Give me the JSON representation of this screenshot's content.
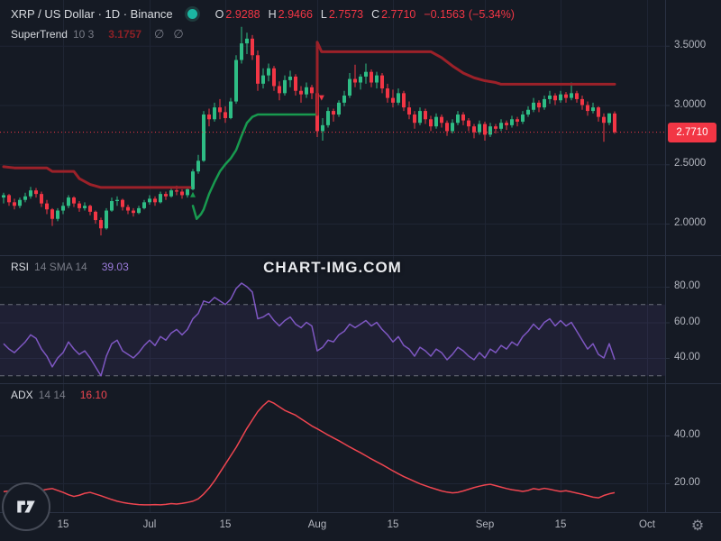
{
  "header": {
    "title": "XRP / US Dollar · 1D · Binance",
    "ohlc": {
      "open_label": "O",
      "open": "2.9288",
      "high_label": "H",
      "high": "2.9466",
      "low_label": "L",
      "low": "2.7573",
      "close_label": "C",
      "close": "2.7710",
      "change": "−0.1563",
      "change_pct": "(−5.34%)"
    }
  },
  "indicators": {
    "supertrend": {
      "name": "SuperTrend",
      "params": "10 3",
      "value": "3.1757",
      "empty1": "∅",
      "empty2": "∅"
    },
    "rsi": {
      "name": "RSI",
      "params": "14 SMA 14",
      "value": "39.03"
    },
    "adx": {
      "name": "ADX",
      "params": "14 14",
      "value": "16.10"
    }
  },
  "watermark": "CHART-IMG.COM",
  "icons": {
    "settings": "⚙"
  },
  "axes": {
    "price_ticks": [
      {
        "label": "3.5000",
        "value": 3.5
      },
      {
        "label": "3.0000",
        "value": 3.0
      },
      {
        "label": "2.5000",
        "value": 2.5
      },
      {
        "label": "2.0000",
        "value": 2.0
      }
    ],
    "price_label": "2.7710",
    "rsi_ticks": [
      {
        "label": "80.00",
        "value": 80
      },
      {
        "label": "60.00",
        "value": 60
      },
      {
        "label": "40.00",
        "value": 40
      }
    ],
    "adx_ticks": [
      {
        "label": "40.00",
        "value": 40
      },
      {
        "label": "20.00",
        "value": 20
      }
    ],
    "time_ticks": [
      {
        "label": "15",
        "index": 11
      },
      {
        "label": "Jul",
        "index": 27
      },
      {
        "label": "15",
        "index": 41
      },
      {
        "label": "Aug",
        "index": 58
      },
      {
        "label": "15",
        "index": 72
      },
      {
        "label": "Sep",
        "index": 89
      },
      {
        "label": "15",
        "index": 103
      },
      {
        "label": "Oct",
        "index": 119
      }
    ]
  },
  "colors": {
    "background": "#151a24",
    "grid": "#1f2534",
    "separator": "#2a3142",
    "text_primary": "#d8dbe0",
    "text_secondary": "#787b86",
    "axis_text": "#b2b5be",
    "up": "#2ebd85",
    "down": "#f23645",
    "supertrend_up": "#189a4f",
    "supertrend_down": "#9c2129",
    "rsi_line": "#7e57c2",
    "rsi_band": "rgba(126,87,194,0.10)",
    "rsi_level": "#6a6e79",
    "adx_line": "#ef4550",
    "price_line": "#f23645",
    "price_label_bg": "#f23645",
    "supertrend_value": "#8c2026",
    "rsi_value": "#9b7bdb",
    "adx_value": "#ef4550",
    "status_dot": "#1bb7a2",
    "watermark": "#e8eaee"
  },
  "chart_data": [
    {
      "type": "candlestick",
      "name": "XRP/USD daily candles with SuperTrend 10,3",
      "y_ticks": [
        3.5,
        3.0,
        2.5,
        2.0
      ],
      "ylim": [
        1.85,
        3.7
      ],
      "last_price": 2.771,
      "ohlc": [
        [
          2.22,
          2.26,
          2.17,
          2.24
        ],
        [
          2.24,
          2.25,
          2.15,
          2.18
        ],
        [
          2.18,
          2.21,
          2.12,
          2.15
        ],
        [
          2.15,
          2.22,
          2.13,
          2.2
        ],
        [
          2.2,
          2.26,
          2.18,
          2.23
        ],
        [
          2.23,
          2.31,
          2.21,
          2.28
        ],
        [
          2.28,
          2.3,
          2.22,
          2.25
        ],
        [
          2.25,
          2.27,
          2.14,
          2.17
        ],
        [
          2.17,
          2.2,
          2.08,
          2.12
        ],
        [
          2.12,
          2.13,
          1.98,
          2.04
        ],
        [
          2.04,
          2.13,
          2.02,
          2.11
        ],
        [
          2.11,
          2.18,
          2.08,
          2.15
        ],
        [
          2.15,
          2.24,
          2.13,
          2.22
        ],
        [
          2.22,
          2.23,
          2.14,
          2.17
        ],
        [
          2.17,
          2.19,
          2.1,
          2.13
        ],
        [
          2.13,
          2.18,
          2.11,
          2.15
        ],
        [
          2.15,
          2.16,
          2.07,
          2.1
        ],
        [
          2.1,
          2.11,
          2.0,
          2.03
        ],
        [
          2.03,
          2.05,
          1.9,
          1.96
        ],
        [
          1.96,
          2.13,
          1.95,
          2.11
        ],
        [
          2.11,
          2.22,
          2.1,
          2.19
        ],
        [
          2.19,
          2.23,
          2.15,
          2.2
        ],
        [
          2.2,
          2.21,
          2.11,
          2.14
        ],
        [
          2.14,
          2.16,
          2.08,
          2.11
        ],
        [
          2.11,
          2.13,
          2.06,
          2.09
        ],
        [
          2.09,
          2.15,
          2.08,
          2.13
        ],
        [
          2.13,
          2.2,
          2.12,
          2.18
        ],
        [
          2.18,
          2.24,
          2.16,
          2.21
        ],
        [
          2.21,
          2.23,
          2.15,
          2.18
        ],
        [
          2.18,
          2.27,
          2.17,
          2.25
        ],
        [
          2.25,
          2.27,
          2.2,
          2.23
        ],
        [
          2.23,
          2.3,
          2.22,
          2.28
        ],
        [
          2.28,
          2.32,
          2.24,
          2.27
        ],
        [
          2.27,
          2.29,
          2.21,
          2.24
        ],
        [
          2.24,
          2.31,
          2.22,
          2.29
        ],
        [
          2.29,
          2.46,
          2.28,
          2.44
        ],
        [
          2.44,
          2.58,
          2.42,
          2.53
        ],
        [
          2.53,
          2.95,
          2.52,
          2.92
        ],
        [
          2.92,
          2.97,
          2.82,
          2.88
        ],
        [
          2.88,
          3.02,
          2.86,
          2.98
        ],
        [
          2.98,
          3.05,
          2.88,
          2.94
        ],
        [
          2.94,
          2.99,
          2.85,
          2.89
        ],
        [
          2.89,
          3.06,
          2.88,
          3.03
        ],
        [
          3.03,
          3.42,
          3.01,
          3.38
        ],
        [
          3.38,
          3.66,
          3.35,
          3.52
        ],
        [
          3.52,
          3.61,
          3.43,
          3.56
        ],
        [
          3.56,
          3.59,
          3.38,
          3.42
        ],
        [
          3.42,
          3.46,
          3.12,
          3.18
        ],
        [
          3.18,
          3.31,
          3.14,
          3.25
        ],
        [
          3.25,
          3.35,
          3.2,
          3.31
        ],
        [
          3.31,
          3.33,
          3.12,
          3.16
        ],
        [
          3.16,
          3.2,
          3.04,
          3.1
        ],
        [
          3.1,
          3.25,
          3.08,
          3.21
        ],
        [
          3.21,
          3.29,
          3.15,
          3.24
        ],
        [
          3.24,
          3.26,
          3.08,
          3.12
        ],
        [
          3.12,
          3.16,
          3.02,
          3.09
        ],
        [
          3.09,
          3.19,
          3.06,
          3.15
        ],
        [
          3.15,
          3.17,
          3.05,
          3.1
        ],
        [
          3.1,
          3.11,
          2.73,
          2.78
        ],
        [
          2.78,
          2.89,
          2.7,
          2.83
        ],
        [
          2.83,
          2.98,
          2.81,
          2.95
        ],
        [
          2.95,
          2.97,
          2.86,
          2.92
        ],
        [
          2.92,
          3.04,
          2.9,
          3.02
        ],
        [
          3.02,
          3.12,
          2.99,
          3.08
        ],
        [
          3.08,
          3.27,
          3.06,
          3.22
        ],
        [
          3.22,
          3.34,
          3.15,
          3.19
        ],
        [
          3.19,
          3.26,
          3.13,
          3.24
        ],
        [
          3.24,
          3.35,
          3.18,
          3.28
        ],
        [
          3.28,
          3.3,
          3.15,
          3.19
        ],
        [
          3.19,
          3.28,
          3.14,
          3.25
        ],
        [
          3.25,
          3.27,
          3.1,
          3.14
        ],
        [
          3.14,
          3.18,
          3.02,
          3.06
        ],
        [
          3.06,
          3.13,
          2.98,
          3.02
        ],
        [
          3.02,
          3.14,
          3.0,
          3.1
        ],
        [
          3.1,
          3.12,
          2.95,
          2.98
        ],
        [
          2.98,
          3.03,
          2.88,
          2.92
        ],
        [
          2.92,
          2.95,
          2.8,
          2.85
        ],
        [
          2.85,
          2.98,
          2.83,
          2.95
        ],
        [
          2.95,
          2.97,
          2.84,
          2.88
        ],
        [
          2.88,
          2.91,
          2.78,
          2.82
        ],
        [
          2.82,
          2.93,
          2.8,
          2.9
        ],
        [
          2.9,
          2.92,
          2.81,
          2.85
        ],
        [
          2.85,
          2.87,
          2.74,
          2.78
        ],
        [
          2.78,
          2.88,
          2.76,
          2.85
        ],
        [
          2.85,
          2.95,
          2.83,
          2.92
        ],
        [
          2.92,
          2.94,
          2.83,
          2.87
        ],
        [
          2.87,
          2.89,
          2.78,
          2.82
        ],
        [
          2.82,
          2.84,
          2.72,
          2.77
        ],
        [
          2.77,
          2.87,
          2.75,
          2.84
        ],
        [
          2.84,
          2.86,
          2.7,
          2.75
        ],
        [
          2.75,
          2.85,
          2.73,
          2.82
        ],
        [
          2.82,
          2.84,
          2.76,
          2.8
        ],
        [
          2.8,
          2.88,
          2.78,
          2.85
        ],
        [
          2.85,
          2.87,
          2.79,
          2.83
        ],
        [
          2.83,
          2.91,
          2.81,
          2.88
        ],
        [
          2.88,
          2.9,
          2.82,
          2.86
        ],
        [
          2.86,
          2.95,
          2.84,
          2.92
        ],
        [
          2.92,
          2.99,
          2.9,
          2.96
        ],
        [
          2.96,
          3.06,
          2.94,
          3.02
        ],
        [
          3.02,
          3.04,
          2.94,
          2.98
        ],
        [
          2.98,
          3.08,
          2.96,
          3.05
        ],
        [
          3.05,
          3.12,
          3.01,
          3.08
        ],
        [
          3.08,
          3.1,
          3.0,
          3.04
        ],
        [
          3.04,
          3.12,
          3.02,
          3.09
        ],
        [
          3.09,
          3.11,
          3.02,
          3.06
        ],
        [
          3.06,
          3.19,
          3.04,
          3.1
        ],
        [
          3.1,
          3.12,
          3.02,
          3.05
        ],
        [
          3.05,
          3.08,
          2.96,
          3.0
        ],
        [
          3.0,
          3.03,
          2.91,
          2.95
        ],
        [
          2.95,
          3.02,
          2.93,
          2.98
        ],
        [
          2.98,
          2.99,
          2.86,
          2.9
        ],
        [
          2.9,
          2.93,
          2.69,
          2.85
        ],
        [
          2.85,
          2.93,
          2.83,
          2.93
        ],
        [
          2.9288,
          2.9466,
          2.7573,
          2.771
        ]
      ],
      "supertrend": {
        "down1": [
          [
            0,
            2.48
          ],
          [
            2,
            2.47
          ],
          [
            8,
            2.47
          ],
          [
            9,
            2.44
          ],
          [
            13,
            2.44
          ],
          [
            14,
            2.38
          ],
          [
            16,
            2.33
          ],
          [
            18,
            2.305
          ],
          [
            34.5,
            2.305
          ]
        ],
        "up": [
          [
            35,
            2.15
          ],
          [
            35.7,
            2.04
          ],
          [
            36.5,
            2.08
          ],
          [
            37,
            2.12
          ],
          [
            38,
            2.25
          ],
          [
            39,
            2.35
          ],
          [
            40,
            2.44
          ],
          [
            41,
            2.5
          ],
          [
            42,
            2.55
          ],
          [
            43,
            2.62
          ],
          [
            44,
            2.74
          ],
          [
            45,
            2.85
          ],
          [
            46,
            2.9
          ],
          [
            47,
            2.92
          ],
          [
            58,
            2.92
          ]
        ],
        "down2": [
          [
            58,
            2.92
          ],
          [
            58,
            3.53
          ],
          [
            58.8,
            3.45
          ],
          [
            79,
            3.45
          ],
          [
            81,
            3.4
          ],
          [
            83,
            3.33
          ],
          [
            85,
            3.27
          ],
          [
            87,
            3.23
          ],
          [
            89,
            3.205
          ],
          [
            91,
            3.19
          ],
          [
            92,
            3.1757
          ],
          [
            113,
            3.1757
          ]
        ]
      },
      "markers": [
        {
          "x_index": 35,
          "price": 2.245,
          "type": "up"
        },
        {
          "x_index": 58.8,
          "price": 3.06,
          "type": "down"
        }
      ]
    },
    {
      "type": "line",
      "name": "RSI 14",
      "y_ticks": [
        80,
        60,
        40
      ],
      "band": [
        30,
        70
      ],
      "levels": [
        70,
        30
      ],
      "last": 39.03,
      "values": [
        48,
        45,
        43,
        46,
        49,
        53,
        51,
        45,
        41,
        35,
        40,
        43,
        49,
        45,
        42,
        44,
        40,
        35,
        30,
        41,
        48,
        50,
        44,
        42,
        40,
        43,
        47,
        50,
        47,
        52,
        50,
        54,
        56,
        53,
        56,
        62,
        65,
        72,
        71,
        74,
        72,
        70,
        73,
        79,
        82,
        80,
        77,
        62,
        63,
        65,
        61,
        58,
        61,
        63,
        59,
        57,
        60,
        58,
        44,
        46,
        50,
        49,
        53,
        55,
        59,
        57,
        59,
        61,
        58,
        60,
        56,
        53,
        49,
        52,
        47,
        45,
        41,
        46,
        44,
        41,
        45,
        43,
        39,
        42,
        46,
        44,
        41,
        39,
        43,
        40,
        45,
        43,
        47,
        45,
        49,
        47,
        52,
        55,
        59,
        56,
        60,
        62,
        58,
        61,
        58,
        60,
        55,
        50,
        45,
        48,
        42,
        40,
        48,
        39.03
      ]
    },
    {
      "type": "line",
      "name": "ADX 14 14",
      "y_ticks": [
        40,
        20
      ],
      "last": 16.1,
      "values": [
        16.5,
        16.8,
        16.2,
        15.8,
        15.5,
        16,
        16.5,
        17,
        17.5,
        17.8,
        17,
        16.2,
        15.2,
        14.5,
        15,
        15.8,
        16.2,
        15.5,
        14.8,
        14,
        13.2,
        12.5,
        12,
        11.6,
        11.3,
        11.1,
        11,
        11,
        11.1,
        11,
        11.2,
        11.5,
        11.3,
        11.6,
        12,
        12.5,
        13.5,
        15.5,
        18,
        21,
        24.5,
        28,
        31.5,
        35,
        39,
        43,
        46.5,
        50,
        52.5,
        54.5,
        53.5,
        52,
        50.5,
        49.5,
        48.5,
        47,
        45.5,
        44,
        42.8,
        41.5,
        40.2,
        39,
        37.8,
        36.5,
        35.2,
        34,
        32.8,
        31.5,
        30.2,
        29,
        27.8,
        26.5,
        25.2,
        24,
        22.8,
        21.8,
        20.8,
        19.8,
        19,
        18.2,
        17.5,
        16.8,
        16.3,
        16,
        16.2,
        16.8,
        17.5,
        18.2,
        18.8,
        19.3,
        19.6,
        19,
        18.4,
        17.8,
        17.3,
        17,
        16.6,
        17,
        17.8,
        17.4,
        17.9,
        17.5,
        17,
        16.6,
        16.9,
        16.4,
        15.9,
        15.4,
        14.8,
        14.2,
        13.9,
        14.9,
        15.6,
        16.1
      ]
    }
  ]
}
